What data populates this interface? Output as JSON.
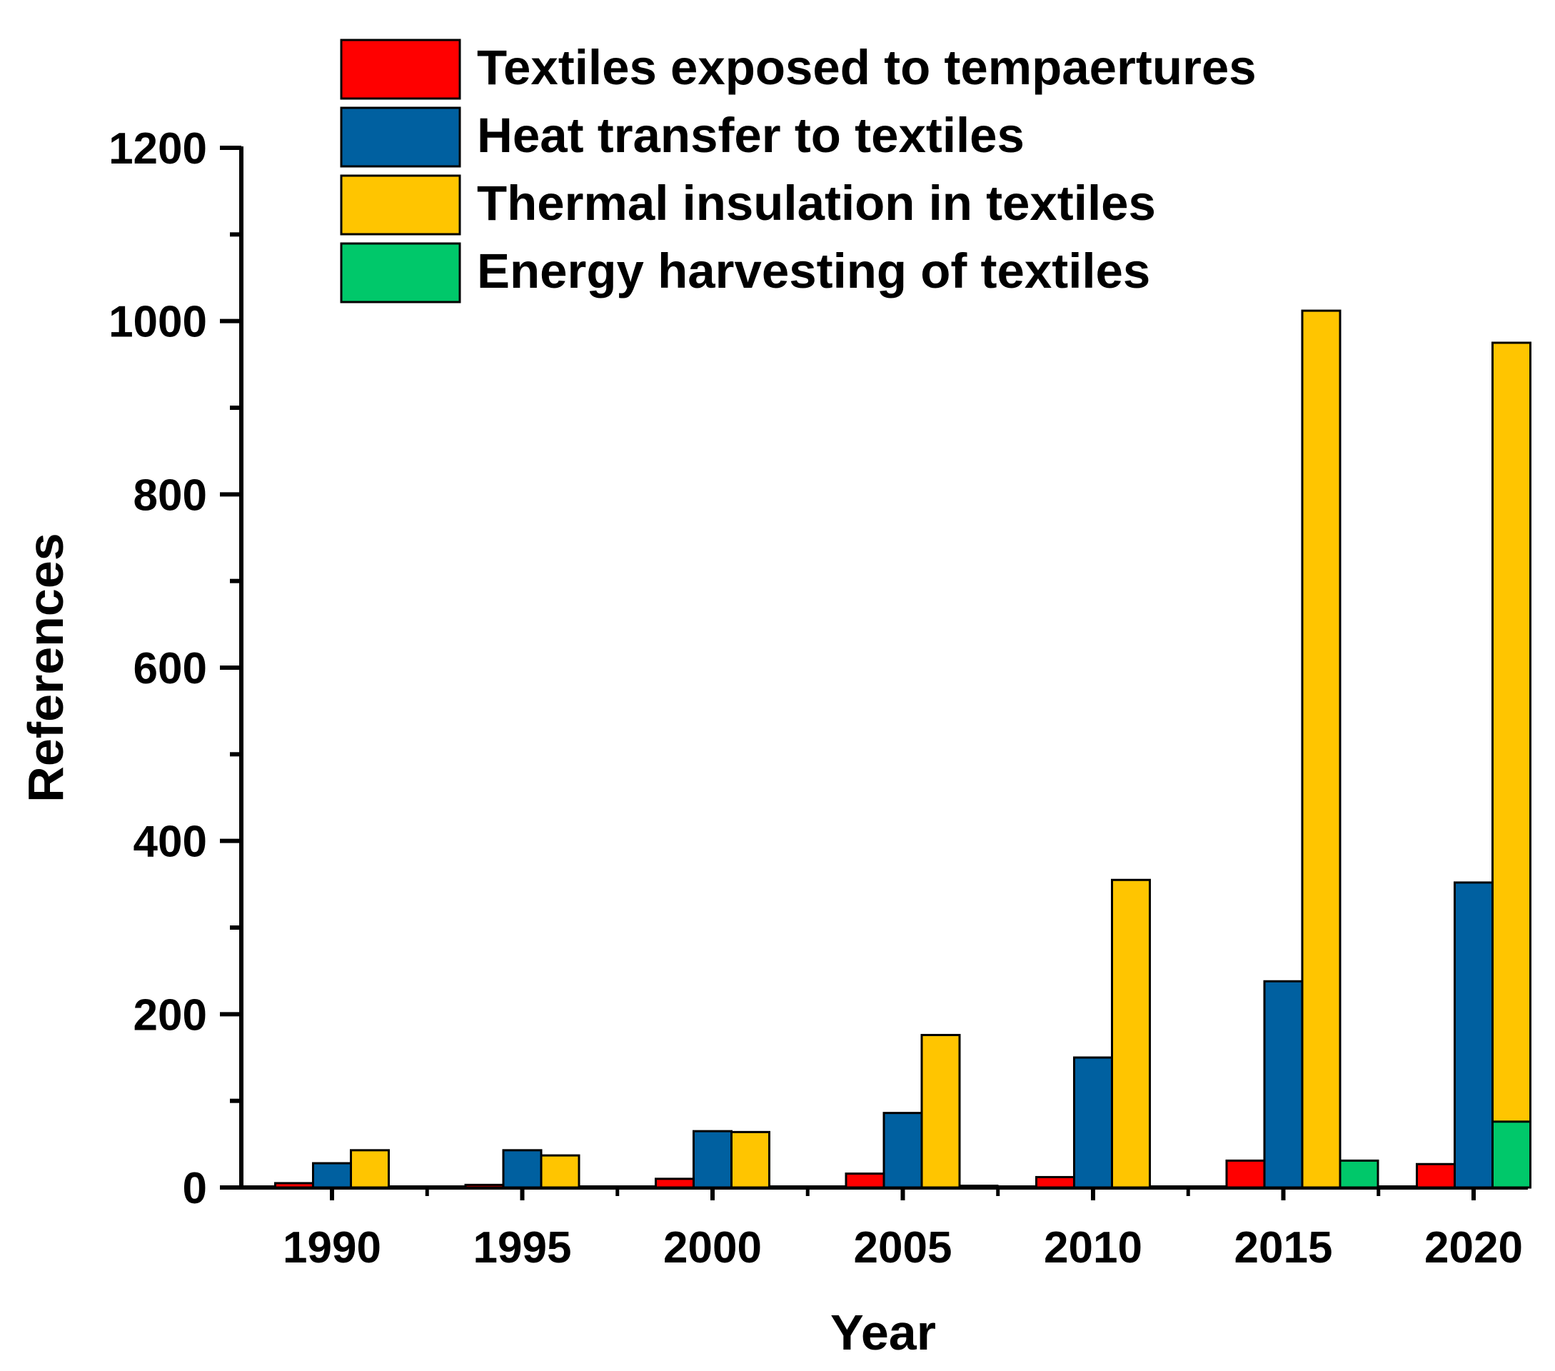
{
  "chart_data": {
    "type": "bar",
    "title": "",
    "xlabel": "Year",
    "ylabel": "References",
    "ylim": [
      0,
      1200
    ],
    "yticks": [
      "0",
      "200",
      "400",
      "600",
      "800",
      "1000",
      "1200"
    ],
    "categories": [
      "1990",
      "1995",
      "2000",
      "2005",
      "2010",
      "2015",
      "2020"
    ],
    "legend_position": "top",
    "series": [
      {
        "name": "Textiles exposed to tempaertures",
        "color": "#ff0000",
        "values": [
          5,
          3,
          10,
          16,
          12,
          31,
          27
        ],
        "offsets": [
          -1,
          -1,
          -1,
          -1,
          -1,
          -1,
          -1
        ]
      },
      {
        "name": "Heat transfer to textiles",
        "color": "#0060a0",
        "values": [
          28,
          43,
          65,
          86,
          150,
          238,
          352
        ],
        "offsets": [
          0,
          0,
          0,
          0,
          0,
          0,
          0
        ]
      },
      {
        "name": "Thermal insulation in textiles",
        "color": "#ffc500",
        "values": [
          43,
          37,
          64,
          176,
          355,
          1012,
          975
        ],
        "offsets": [
          1,
          1,
          1,
          1,
          1,
          1,
          1
        ]
      },
      {
        "name": "Energy harvesting of textiles",
        "color": "#00c86a",
        "values": [
          0,
          0,
          0,
          2,
          0,
          31,
          76
        ],
        "offsets": [
          2,
          2,
          2,
          2,
          2,
          2,
          1
        ]
      }
    ]
  }
}
